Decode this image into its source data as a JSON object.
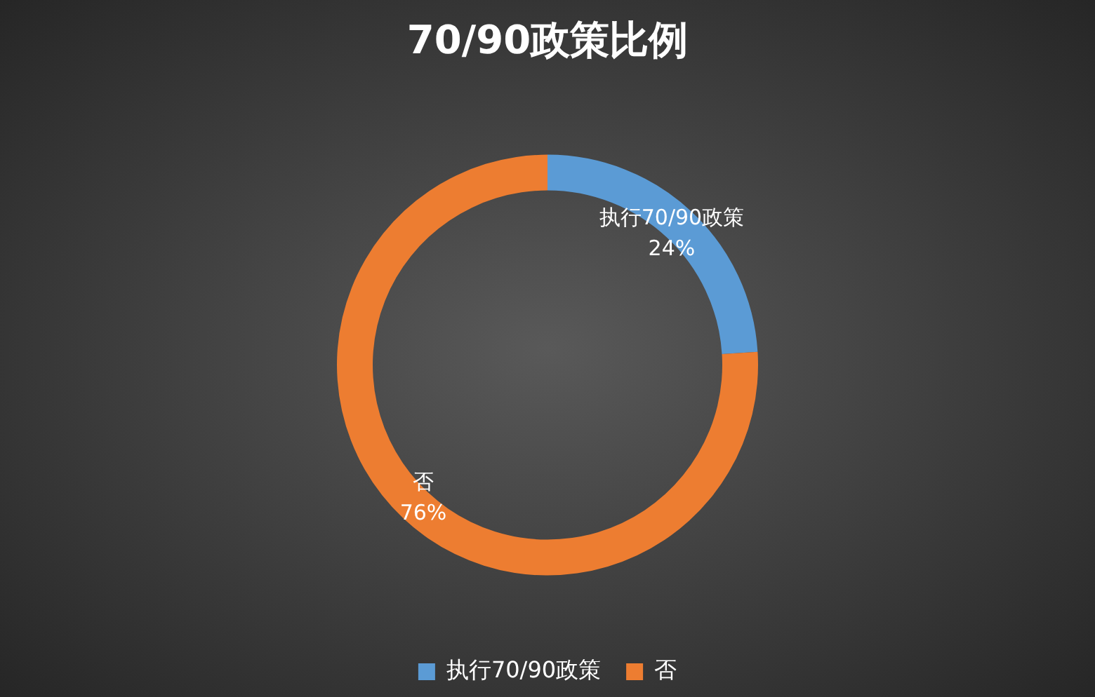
{
  "chart_data": {
    "type": "donut",
    "title": "70/90政策比例",
    "categories": [
      "执行70/90政策",
      "否"
    ],
    "values": [
      24,
      76
    ],
    "colors": [
      "#5b9bd5",
      "#ed7d31"
    ],
    "value_labels": [
      "24%",
      "76%"
    ],
    "legend": "bottom"
  }
}
